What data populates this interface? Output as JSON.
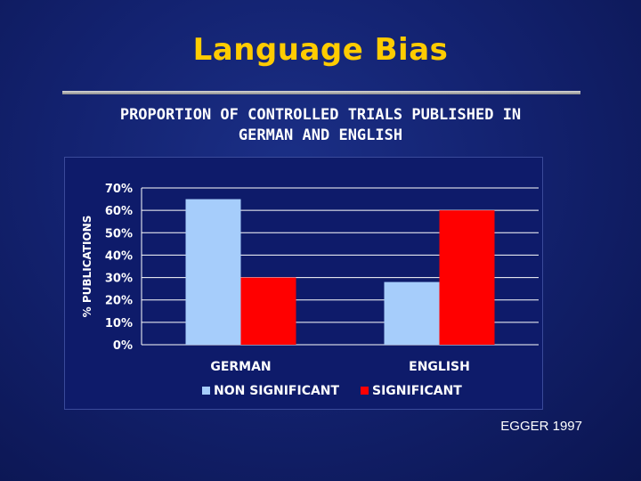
{
  "slide": {
    "title": "Language Bias",
    "subtitle_line1": "PROPORTION OF CONTROLLED TRIALS PUBLISHED IN",
    "subtitle_line2": "GERMAN AND ENGLISH",
    "credit": "EGGER 1997"
  },
  "colors": {
    "title": "#ffcc00",
    "non_significant": "#a6cdfb",
    "significant": "#ff0000",
    "background": "#132270"
  },
  "chart_data": {
    "type": "bar",
    "ylabel": "% PUBLICATIONS",
    "ylim": [
      0,
      70
    ],
    "yticks": [
      "0%",
      "10%",
      "20%",
      "30%",
      "40%",
      "50%",
      "60%",
      "70%"
    ],
    "categories": [
      "GERMAN",
      "ENGLISH"
    ],
    "series": [
      {
        "name": "NON SIGNIFICANT",
        "values": [
          65,
          28
        ]
      },
      {
        "name": "SIGNIFICANT",
        "values": [
          30,
          60
        ]
      }
    ],
    "grid": true,
    "legend_position": "bottom"
  }
}
